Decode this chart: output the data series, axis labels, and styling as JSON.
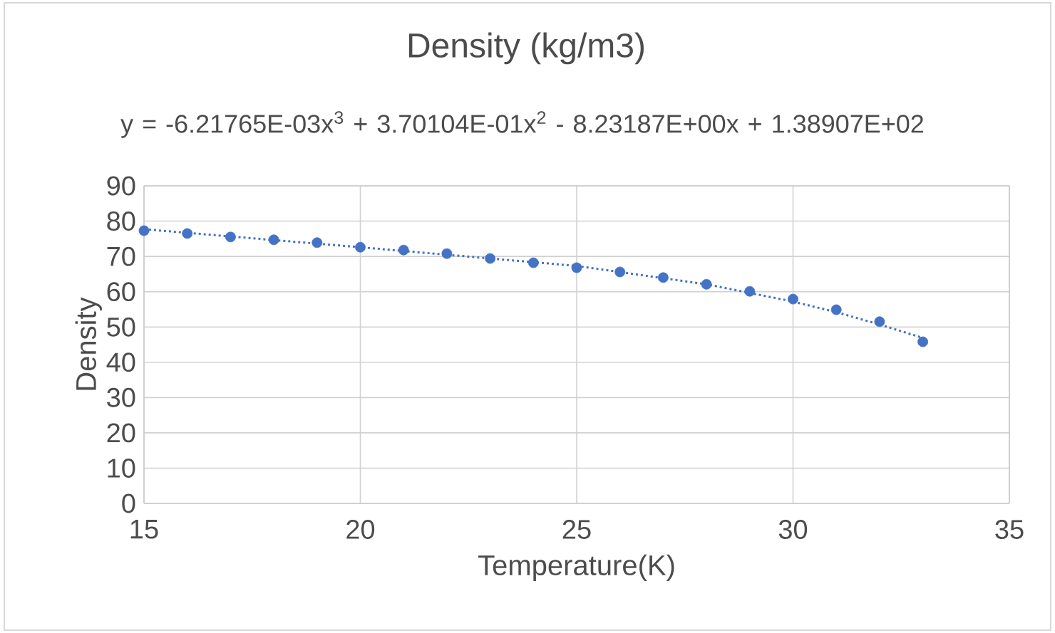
{
  "chart_data": {
    "type": "scatter",
    "title": "Density (kg/m3)",
    "subtitle": "y = -6.21765E-03x$^{3}$ + 3.70104E-01x$^{2}$ - 8.23187E+00x + 1.38907E+02",
    "xlabel": "Temperature(K)",
    "ylabel": "Density",
    "x": [
      15,
      16,
      17,
      18,
      19,
      20,
      21,
      22,
      23,
      24,
      25,
      26,
      27,
      28,
      29,
      30,
      31,
      32,
      33
    ],
    "series": [
      {
        "type": "scatter",
        "color": "#4472c4",
        "marker": "circle",
        "values": [
          77.3,
          76.5,
          75.5,
          74.7,
          73.9,
          72.6,
          71.8,
          70.8,
          69.4,
          68.2,
          66.8,
          65.6,
          64.0,
          62.1,
          60.1,
          57.9,
          54.9,
          51.5,
          45.8
        ]
      },
      {
        "type": "line",
        "color": "#4472c4",
        "marker": "none",
        "line_style": "dotted",
        "x": [
          15,
          20,
          25,
          28,
          30,
          31,
          32,
          33
        ],
        "values": [
          77.7,
          72.6,
          67.3,
          62.1,
          57.2,
          54.2,
          50.7,
          46.9
        ]
      }
    ],
    "xlim": [
      15,
      35
    ],
    "xticks": [
      15,
      20,
      25,
      30,
      35
    ],
    "ylim": [
      0,
      90
    ],
    "yticks": [
      0,
      10,
      20,
      30,
      40,
      50,
      60,
      70,
      80,
      90
    ],
    "grid": true
  }
}
